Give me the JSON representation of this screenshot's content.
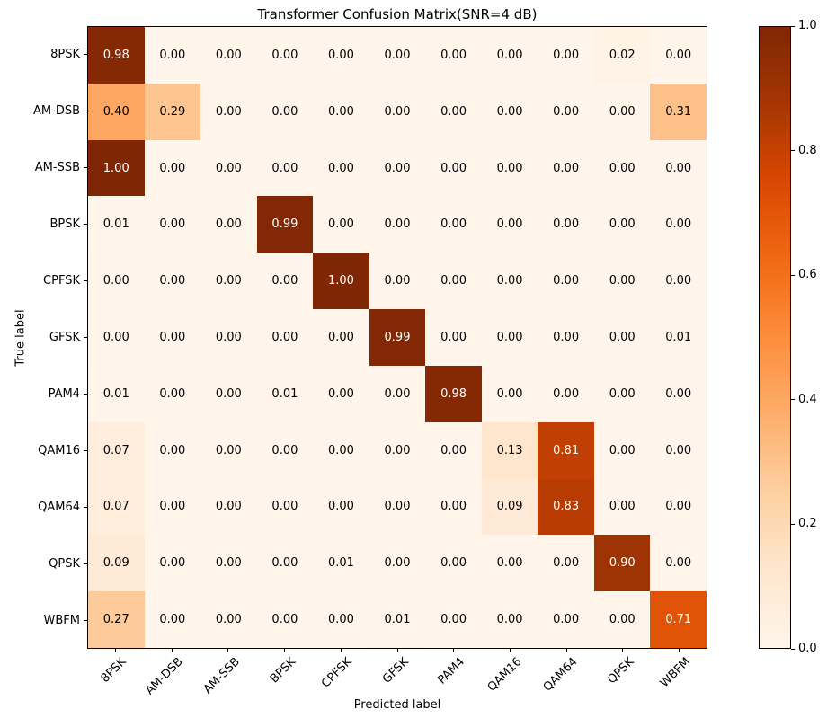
{
  "chart_data": {
    "type": "heatmap",
    "title": "Transformer Confusion Matrix(SNR=4 dB)",
    "xlabel": "Predicted label",
    "ylabel": "True label",
    "categories": [
      "8PSK",
      "AM-DSB",
      "AM-SSB",
      "BPSK",
      "CPFSK",
      "GFSK",
      "PAM4",
      "QAM16",
      "QAM64",
      "QPSK",
      "WBFM"
    ],
    "matrix": [
      [
        0.98,
        0.0,
        0.0,
        0.0,
        0.0,
        0.0,
        0.0,
        0.0,
        0.0,
        0.02,
        0.0
      ],
      [
        0.4,
        0.29,
        0.0,
        0.0,
        0.0,
        0.0,
        0.0,
        0.0,
        0.0,
        0.0,
        0.31
      ],
      [
        1.0,
        0.0,
        0.0,
        0.0,
        0.0,
        0.0,
        0.0,
        0.0,
        0.0,
        0.0,
        0.0
      ],
      [
        0.01,
        0.0,
        0.0,
        0.99,
        0.0,
        0.0,
        0.0,
        0.0,
        0.0,
        0.0,
        0.0
      ],
      [
        0.0,
        0.0,
        0.0,
        0.0,
        1.0,
        0.0,
        0.0,
        0.0,
        0.0,
        0.0,
        0.0
      ],
      [
        0.0,
        0.0,
        0.0,
        0.0,
        0.0,
        0.99,
        0.0,
        0.0,
        0.0,
        0.0,
        0.01
      ],
      [
        0.01,
        0.0,
        0.0,
        0.01,
        0.0,
        0.0,
        0.98,
        0.0,
        0.0,
        0.0,
        0.0
      ],
      [
        0.07,
        0.0,
        0.0,
        0.0,
        0.0,
        0.0,
        0.0,
        0.13,
        0.81,
        0.0,
        0.0
      ],
      [
        0.07,
        0.0,
        0.0,
        0.0,
        0.0,
        0.0,
        0.0,
        0.09,
        0.83,
        0.0,
        0.0
      ],
      [
        0.09,
        0.0,
        0.0,
        0.0,
        0.01,
        0.0,
        0.0,
        0.0,
        0.0,
        0.9,
        0.0
      ],
      [
        0.27,
        0.0,
        0.0,
        0.0,
        0.0,
        0.01,
        0.0,
        0.0,
        0.0,
        0.0,
        0.71
      ]
    ],
    "vmin": 0.0,
    "vmax": 1.0,
    "grid": false,
    "cell_label_decimals": 2,
    "text_threshold": 0.5,
    "cell_text_colors": {
      "above_threshold": "#ffffff",
      "below_threshold": "#000000"
    },
    "colormap": {
      "name": "Oranges",
      "stops": [
        {
          "pos": 0.0,
          "color": "#fff5eb"
        },
        {
          "pos": 0.125,
          "color": "#fee6ce"
        },
        {
          "pos": 0.25,
          "color": "#fdd0a2"
        },
        {
          "pos": 0.375,
          "color": "#fdae6b"
        },
        {
          "pos": 0.5,
          "color": "#fd8d3c"
        },
        {
          "pos": 0.625,
          "color": "#f16913"
        },
        {
          "pos": 0.75,
          "color": "#d94801"
        },
        {
          "pos": 0.875,
          "color": "#a63603"
        },
        {
          "pos": 1.0,
          "color": "#7f2704"
        }
      ]
    },
    "colorbar": {
      "position": "right",
      "tick_values": [
        0.0,
        0.2,
        0.4,
        0.6,
        0.8,
        1.0
      ],
      "tick_label_decimals": 1
    },
    "axis_color": "#000000",
    "background_color": "#ffffff"
  }
}
